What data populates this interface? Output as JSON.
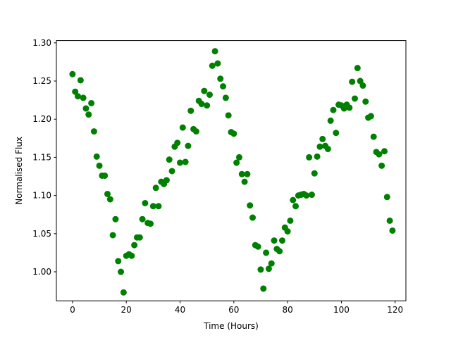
{
  "chart_data": {
    "type": "scatter",
    "title": "",
    "xlabel": "Time (Hours)",
    "ylabel": "Normalised Flux",
    "xlim": [
      -6,
      124
    ],
    "ylim": [
      0.962,
      1.303
    ],
    "xticks": [
      0,
      20,
      40,
      60,
      80,
      100,
      120
    ],
    "yticks": [
      1.0,
      1.05,
      1.1,
      1.15,
      1.2,
      1.25,
      1.3
    ],
    "ytick_labels": [
      "1.00",
      "1.05",
      "1.10",
      "1.15",
      "1.20",
      "1.25",
      "1.30"
    ],
    "grid": false,
    "legend": "none",
    "marker_color": "#008000",
    "series": [
      {
        "marker": "circle",
        "x": [
          0.0,
          1.0,
          2.0,
          3.0,
          4.0,
          5.0,
          6.0,
          7.0,
          8.0,
          9.0,
          10.0,
          11.0,
          12.0,
          13.0,
          14.0,
          15.0,
          16.0,
          17.0,
          18.0,
          19.0,
          20.0,
          21.0,
          22.0,
          23.0,
          24.0,
          25.0,
          26.0,
          27.0,
          28.0,
          29.0,
          30.0,
          31.0,
          32.0,
          33.0,
          34.0,
          35.0,
          36.0,
          37.0,
          38.0,
          39.0,
          40.0,
          41.0,
          42.0,
          43.0,
          44.0,
          45.0,
          46.0,
          47.0,
          48.0,
          49.0,
          50.0,
          51.0,
          52.0,
          53.0,
          54.0,
          55.0,
          56.0,
          57.0,
          58.0,
          59.0,
          60.0,
          61.0,
          62.0,
          63.0,
          64.0,
          65.0,
          66.0,
          67.0,
          68.0,
          69.0,
          70.0,
          71.0,
          72.0,
          73.0,
          74.0,
          75.0,
          76.0,
          77.0,
          78.0,
          79.0,
          80.0,
          81.0,
          82.0,
          83.0,
          84.0,
          85.0,
          86.0,
          87.0,
          88.0,
          89.0,
          90.0,
          91.0,
          92.0,
          93.0,
          94.0,
          95.0,
          96.0,
          97.0,
          98.0,
          99.0,
          100.0,
          101.0,
          102.0,
          103.0,
          104.0,
          105.0,
          106.0,
          107.0,
          108.0,
          109.0,
          110.0,
          111.0,
          112.0,
          113.0,
          114.0,
          115.0,
          116.0,
          117.0,
          118.0,
          119.0
        ],
        "y": [
          1.259,
          1.236,
          1.23,
          1.251,
          1.228,
          1.214,
          1.206,
          1.221,
          1.184,
          1.151,
          1.139,
          1.126,
          1.126,
          1.102,
          1.095,
          1.048,
          1.069,
          1.014,
          1.0,
          0.973,
          1.021,
          1.023,
          1.021,
          1.035,
          1.045,
          1.045,
          1.069,
          1.09,
          1.064,
          1.063,
          1.086,
          1.11,
          1.086,
          1.118,
          1.115,
          1.12,
          1.147,
          1.132,
          1.164,
          1.169,
          1.143,
          1.189,
          1.144,
          1.165,
          1.211,
          1.187,
          1.184,
          1.224,
          1.22,
          1.237,
          1.218,
          1.232,
          1.27,
          1.289,
          1.273,
          1.253,
          1.243,
          1.228,
          1.205,
          1.183,
          1.181,
          1.143,
          1.15,
          1.128,
          1.118,
          1.128,
          1.087,
          1.071,
          1.035,
          1.033,
          1.003,
          0.978,
          1.025,
          1.004,
          1.011,
          1.041,
          1.03,
          1.027,
          1.041,
          1.058,
          1.053,
          1.067,
          1.094,
          1.086,
          1.1,
          1.101,
          1.102,
          1.1,
          1.15,
          1.101,
          1.129,
          1.151,
          1.164,
          1.174,
          1.165,
          1.161,
          1.198,
          1.212,
          1.182,
          1.219,
          1.218,
          1.214,
          1.219,
          1.215,
          1.249,
          1.227,
          1.267,
          1.25,
          1.244,
          1.223,
          1.202,
          1.204,
          1.177,
          1.157,
          1.154,
          1.139,
          1.158,
          1.098,
          1.067,
          1.054
        ]
      }
    ]
  }
}
